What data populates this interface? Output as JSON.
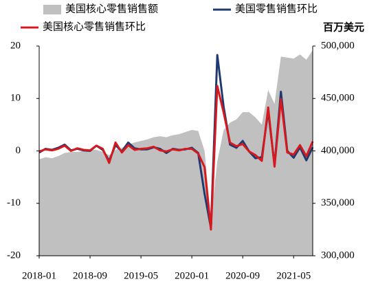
{
  "chart_data": {
    "type": "line",
    "categories": [
      "2018-01",
      null,
      null,
      null,
      null,
      null,
      null,
      null,
      "2018-09",
      null,
      null,
      null,
      null,
      null,
      null,
      null,
      "2019-05",
      null,
      null,
      null,
      null,
      null,
      null,
      null,
      "2020-01",
      null,
      null,
      null,
      null,
      null,
      null,
      null,
      "2020-09",
      null,
      null,
      null,
      null,
      null,
      null,
      null,
      "2021-05",
      null,
      null,
      null
    ],
    "series": [
      {
        "name": "美国核心零售销售额",
        "type": "area",
        "axis": "y2",
        "color": "#c0c0c0",
        "values": [
          392000,
          394000,
          393000,
          395000,
          398000,
          399000,
          399000,
          400000,
          401000,
          401000,
          399000,
          396000,
          401000,
          403000,
          406000,
          408000,
          409500,
          411000,
          413000,
          414000,
          413000,
          415000,
          416000,
          418000,
          420000,
          419000,
          400000,
          335000,
          390000,
          420000,
          427000,
          430000,
          437000,
          437000,
          432000,
          425000,
          458000,
          445000,
          490000,
          489000,
          488000,
          492000,
          487000,
          496000
        ]
      },
      {
        "name": "美国零售销售环比",
        "type": "line",
        "color": "#1f3a6e",
        "values": [
          -0.3,
          0.4,
          0.2,
          0.6,
          1.2,
          0.1,
          0.4,
          0.1,
          0.0,
          1.0,
          0.2,
          -1.9,
          1.1,
          -0.1,
          1.6,
          0.5,
          0.3,
          0.3,
          0.7,
          0.4,
          -0.4,
          0.4,
          0.2,
          0.3,
          0.6,
          -0.4,
          -8.2,
          -14.7,
          18.3,
          8.4,
          1.2,
          0.6,
          1.9,
          -0.1,
          -1.4,
          -1.2,
          7.6,
          -2.7,
          11.3,
          0.0,
          -1.3,
          0.7,
          -1.8,
          0.7
        ]
      },
      {
        "name": "美国核心零售销售环比",
        "type": "line",
        "color": "#d7191f",
        "values": [
          -0.1,
          0.3,
          0.1,
          0.4,
          1.0,
          0.0,
          0.5,
          0.2,
          0.1,
          1.0,
          0.4,
          -2.3,
          1.6,
          -0.3,
          1.1,
          0.2,
          0.4,
          0.5,
          0.8,
          0.1,
          -0.1,
          0.3,
          0.1,
          0.4,
          0.4,
          -0.5,
          -3.1,
          -15.0,
          12.4,
          7.3,
          1.6,
          0.9,
          1.3,
          -0.1,
          -0.8,
          -1.9,
          8.3,
          -3.0,
          9.9,
          -0.3,
          -0.7,
          1.1,
          -1.0,
          1.8
        ]
      }
    ],
    "ylim": [
      -20,
      20
    ],
    "yticks": [
      -20,
      -10,
      0,
      10,
      20
    ],
    "y2label": "百万美元",
    "y2lim": [
      300000,
      500000
    ],
    "y2ticks": [
      {
        "value": 300000,
        "label": "300,000"
      },
      {
        "value": 350000,
        "label": "350,000"
      },
      {
        "value": 400000,
        "label": "400,000"
      },
      {
        "value": 450000,
        "label": "450,000"
      },
      {
        "value": 500000,
        "label": "500,000"
      }
    ]
  }
}
